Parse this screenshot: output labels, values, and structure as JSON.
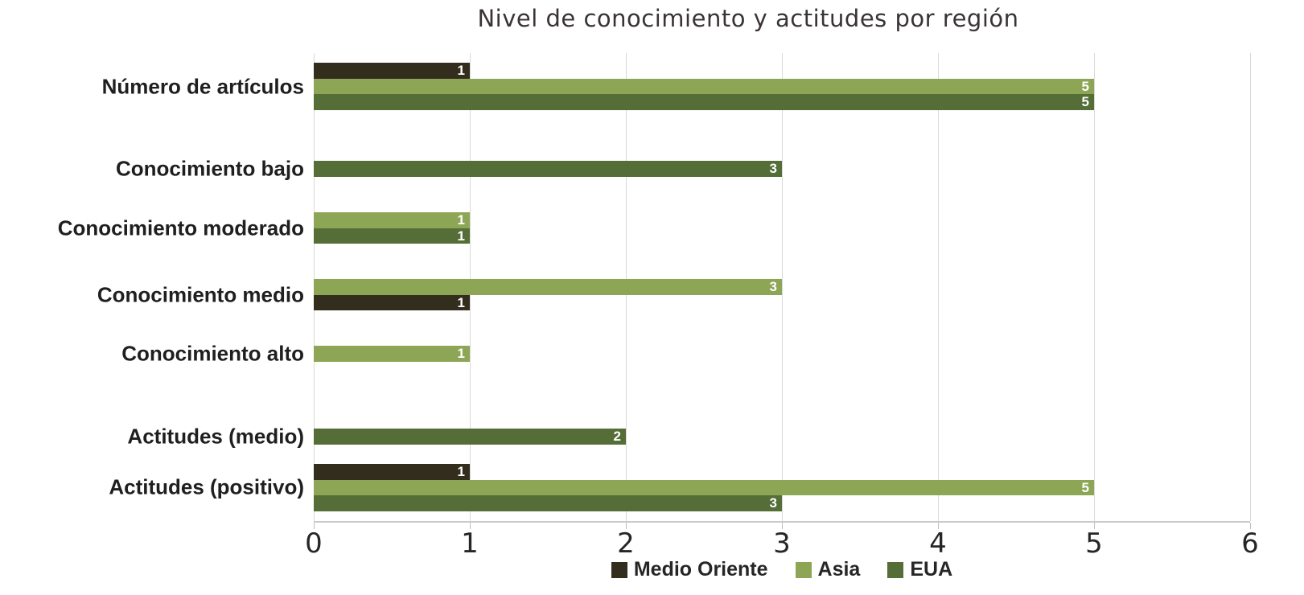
{
  "chart_data": {
    "type": "bar",
    "orientation": "horizontal",
    "title": "Nivel de conocimiento y actitudes por región",
    "categories": [
      "Número de artículos",
      "Conocimiento bajo",
      "Conocimiento moderado",
      "Conocimiento medio",
      "Conocimiento alto",
      "Actitudes (medio)",
      "Actitudes (positivo)"
    ],
    "series": [
      {
        "name": "Medio Oriente",
        "color": "#332d1e",
        "values": [
          1,
          0,
          0,
          1,
          0,
          0,
          1
        ]
      },
      {
        "name": "Asia",
        "color": "#8ca655",
        "values": [
          5,
          0,
          1,
          3,
          1,
          0,
          5
        ]
      },
      {
        "name": "EUA",
        "color": "#556e38",
        "values": [
          5,
          3,
          1,
          0,
          0,
          2,
          3
        ]
      }
    ],
    "rows": [
      {
        "category": "Número de artículos",
        "bars": [
          {
            "series": "Medio Oriente",
            "value": 1,
            "slot": 0
          },
          {
            "series": "Asia",
            "value": 5,
            "slot": 1
          },
          {
            "series": "EUA",
            "value": 5,
            "slot": 2
          }
        ]
      },
      {
        "category": "Conocimiento bajo",
        "bars": [
          {
            "series": "EUA",
            "value": 3,
            "slot": 2
          }
        ]
      },
      {
        "category": "Conocimiento moderado",
        "bars": [
          {
            "series": "Asia",
            "value": 1,
            "slot": 1
          },
          {
            "series": "EUA",
            "value": 1,
            "slot": 2
          }
        ]
      },
      {
        "category": "Conocimiento medio",
        "bars": [
          {
            "series": "Asia",
            "value": 3,
            "slot": 1
          },
          {
            "series": "Medio Oriente",
            "value": 1,
            "slot": 2
          }
        ]
      },
      {
        "category": "Conocimiento alto",
        "bars": [
          {
            "series": "Asia",
            "value": 1,
            "slot": 1
          }
        ]
      },
      {
        "category": "Actitudes (medio)",
        "bars": [
          {
            "series": "EUA",
            "value": 2,
            "slot": 2
          }
        ]
      },
      {
        "category": "Actitudes (positivo)",
        "bars": [
          {
            "series": "Medio Oriente",
            "value": 1,
            "slot": 0
          },
          {
            "series": "Asia",
            "value": 5,
            "slot": 1
          },
          {
            "series": "EUA",
            "value": 3,
            "slot": 2
          }
        ]
      }
    ],
    "xlim": [
      0,
      6
    ],
    "xticks": [
      "0",
      "1",
      "2",
      "3",
      "4",
      "5",
      "6"
    ],
    "grid": "vertical",
    "legend_position": "bottom",
    "value_label_color": "#ffffff",
    "gridline_color": "#d9d9d9",
    "axis_color": "#c9c9c9"
  }
}
